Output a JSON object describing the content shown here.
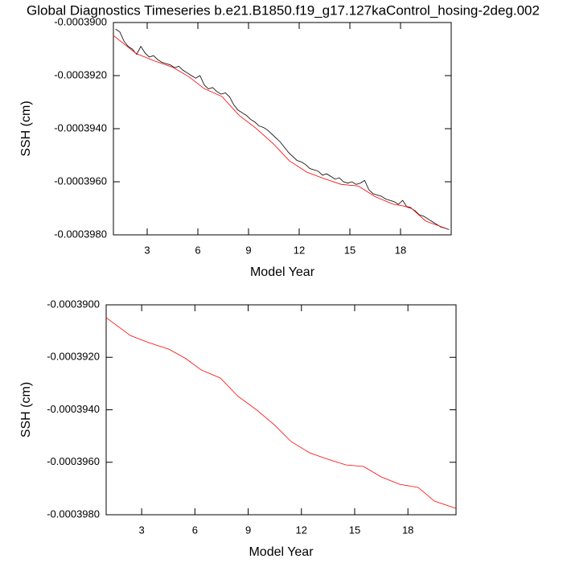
{
  "chart_data": [
    {
      "type": "line",
      "title": "Global Diagnostics Timeseries b.e21.B1850.f19_g17.127kaControl_hosing-2deg.002",
      "xlabel": "Model Year",
      "ylabel": "SSH (cm)",
      "xlim": [
        1,
        21
      ],
      "xticks": [
        3,
        6,
        9,
        12,
        15,
        18
      ],
      "ylim": [
        -0.000398,
        -0.00039
      ],
      "yticks": [
        {
          "value": -0.00039,
          "label": "-0.0003900"
        },
        {
          "value": -0.000392,
          "label": "-0.0003920"
        },
        {
          "value": -0.000394,
          "label": "-0.0003940"
        },
        {
          "value": -0.000396,
          "label": "-0.0003960"
        },
        {
          "value": -0.000398,
          "label": "-0.0003980"
        }
      ],
      "series": [
        {
          "color": "#000000",
          "x": [
            1.125,
            1.375,
            1.625,
            1.875,
            2.125,
            2.375,
            2.625,
            2.875,
            3.125,
            3.375,
            3.625,
            3.875,
            4.125,
            4.375,
            4.625,
            4.875,
            5.125,
            5.375,
            5.625,
            5.875,
            6.125,
            6.375,
            6.625,
            6.875,
            7.125,
            7.375,
            7.625,
            7.875,
            8.125,
            8.375,
            8.625,
            8.875,
            9.125,
            9.375,
            9.625,
            9.875,
            10.125,
            10.375,
            10.625,
            10.875,
            11.125,
            11.375,
            11.625,
            11.875,
            12.125,
            12.375,
            12.625,
            12.875,
            13.125,
            13.375,
            13.625,
            13.875,
            14.125,
            14.375,
            14.625,
            14.875,
            15.125,
            15.375,
            15.625,
            15.875,
            16.125,
            16.375,
            16.625,
            16.875,
            17.125,
            17.375,
            17.625,
            17.875,
            18.125,
            18.375,
            18.625,
            18.875,
            19.125,
            19.375,
            19.625,
            19.875,
            20.125,
            20.375,
            20.625,
            20.875
          ],
          "values": [
            -0.00039025,
            -0.00039035,
            -0.0003907,
            -0.0003909,
            -0.000391,
            -0.0003912,
            -0.0003909,
            -0.00039115,
            -0.0003913,
            -0.00039125,
            -0.0003914,
            -0.0003915,
            -0.00039155,
            -0.0003916,
            -0.0003917,
            -0.00039165,
            -0.0003918,
            -0.0003919,
            -0.000392,
            -0.0003921,
            -0.000392,
            -0.00039235,
            -0.0003925,
            -0.00039245,
            -0.0003926,
            -0.0003927,
            -0.00039265,
            -0.0003928,
            -0.0003931,
            -0.0003933,
            -0.0003934,
            -0.0003935,
            -0.00039365,
            -0.00039375,
            -0.0003939,
            -0.00039395,
            -0.00039405,
            -0.0003942,
            -0.00039435,
            -0.0003945,
            -0.0003947,
            -0.0003949,
            -0.00039505,
            -0.0003952,
            -0.00039525,
            -0.00039535,
            -0.0003955,
            -0.00039555,
            -0.0003956,
            -0.00039575,
            -0.0003957,
            -0.0003958,
            -0.0003959,
            -0.00039585,
            -0.000396,
            -0.00039605,
            -0.000396,
            -0.0003961,
            -0.00039605,
            -0.00039595,
            -0.0003963,
            -0.00039645,
            -0.0003965,
            -0.00039655,
            -0.00039665,
            -0.0003967,
            -0.00039675,
            -0.00039685,
            -0.0003967,
            -0.00039695,
            -0.000397,
            -0.0003971,
            -0.00039725,
            -0.0003973,
            -0.0003974,
            -0.0003975,
            -0.0003976,
            -0.0003977,
            -0.00039775,
            -0.0003978
          ]
        },
        {
          "color": "#ff0000",
          "x": [
            1.0,
            2.36,
            3.4,
            4.53,
            5.49,
            6.35,
            7.43,
            8.43,
            9.43,
            10.47,
            11.42,
            12.46,
            13.51,
            14.5,
            15.5,
            16.5,
            17.54,
            18.58,
            19.49,
            20.71
          ],
          "values": [
            -0.00039049,
            -0.00039117,
            -0.00039144,
            -0.00039169,
            -0.00039205,
            -0.00039248,
            -0.00039279,
            -0.00039349,
            -0.00039398,
            -0.00039457,
            -0.00039521,
            -0.00039564,
            -0.00039589,
            -0.0003961,
            -0.00039616,
            -0.00039656,
            -0.00039684,
            -0.00039696,
            -0.00039748,
            -0.00039776
          ]
        }
      ]
    },
    {
      "type": "line",
      "xlabel": "Model Year",
      "ylabel": "SSH (cm)",
      "xlim": [
        1,
        20.71
      ],
      "xticks": [
        3,
        6,
        9,
        12,
        15,
        18
      ],
      "ylim": [
        -0.000398,
        -0.00039
      ],
      "yticks": [
        {
          "value": -0.00039,
          "label": "-0.0003900"
        },
        {
          "value": -0.000392,
          "label": "-0.0003920"
        },
        {
          "value": -0.000394,
          "label": "-0.0003940"
        },
        {
          "value": -0.000396,
          "label": "-0.0003960"
        },
        {
          "value": -0.000398,
          "label": "-0.0003980"
        }
      ],
      "series": [
        {
          "color": "#ff0000",
          "x": [
            1.0,
            2.36,
            3.4,
            4.53,
            5.49,
            6.35,
            7.43,
            8.43,
            9.43,
            10.47,
            11.42,
            12.46,
            13.51,
            14.5,
            15.5,
            16.5,
            17.54,
            18.58,
            19.49,
            20.71
          ],
          "values": [
            -0.00039049,
            -0.00039117,
            -0.00039144,
            -0.00039169,
            -0.00039205,
            -0.00039248,
            -0.00039279,
            -0.00039349,
            -0.00039398,
            -0.00039457,
            -0.00039521,
            -0.00039564,
            -0.00039589,
            -0.0003961,
            -0.00039616,
            -0.00039656,
            -0.00039684,
            -0.00039696,
            -0.00039748,
            -0.00039776
          ]
        }
      ]
    }
  ]
}
